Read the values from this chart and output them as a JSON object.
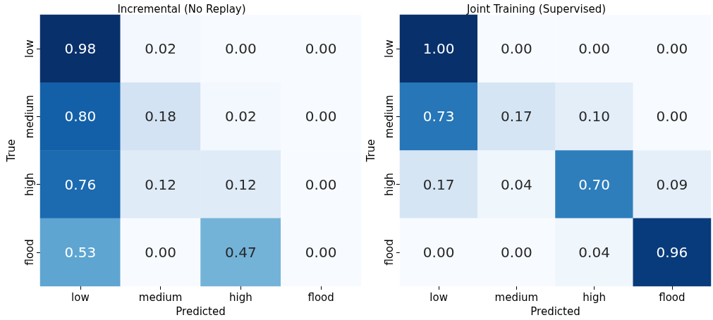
{
  "chart_data": [
    {
      "type": "heatmap",
      "title": "Incremental (No Replay)",
      "xlabel": "Predicted",
      "ylabel": "True",
      "categories": [
        "low",
        "medium",
        "high",
        "flood"
      ],
      "y_categories": [
        "low",
        "medium",
        "high",
        "flood"
      ],
      "cells": [
        [
          0.98,
          0.02,
          0.0,
          0.0
        ],
        [
          0.8,
          0.18,
          0.02,
          0.0
        ],
        [
          0.76,
          0.12,
          0.12,
          0.0
        ],
        [
          0.53,
          0.0,
          0.47,
          0.0
        ]
      ],
      "cell_labels": [
        [
          "0.98",
          "0.02",
          "0.00",
          "0.00"
        ],
        [
          "0.80",
          "0.18",
          "0.02",
          "0.00"
        ],
        [
          "0.76",
          "0.12",
          "0.12",
          "0.00"
        ],
        [
          "0.53",
          "0.00",
          "0.47",
          "0.00"
        ]
      ]
    },
    {
      "type": "heatmap",
      "title": "Joint Training (Supervised)",
      "xlabel": "Predicted",
      "ylabel": "True",
      "categories": [
        "low",
        "medium",
        "high",
        "flood"
      ],
      "y_categories": [
        "low",
        "medium",
        "high",
        "flood"
      ],
      "cells": [
        [
          1.0,
          0.0,
          0.0,
          0.0
        ],
        [
          0.73,
          0.17,
          0.1,
          0.0
        ],
        [
          0.17,
          0.04,
          0.7,
          0.09
        ],
        [
          0.0,
          0.0,
          0.04,
          0.96
        ]
      ],
      "cell_labels": [
        [
          "1.00",
          "0.00",
          "0.00",
          "0.00"
        ],
        [
          "0.73",
          "0.17",
          "0.10",
          "0.00"
        ],
        [
          "0.17",
          "0.04",
          "0.70",
          "0.09"
        ],
        [
          "0.00",
          "0.00",
          "0.04",
          "0.96"
        ]
      ]
    }
  ]
}
